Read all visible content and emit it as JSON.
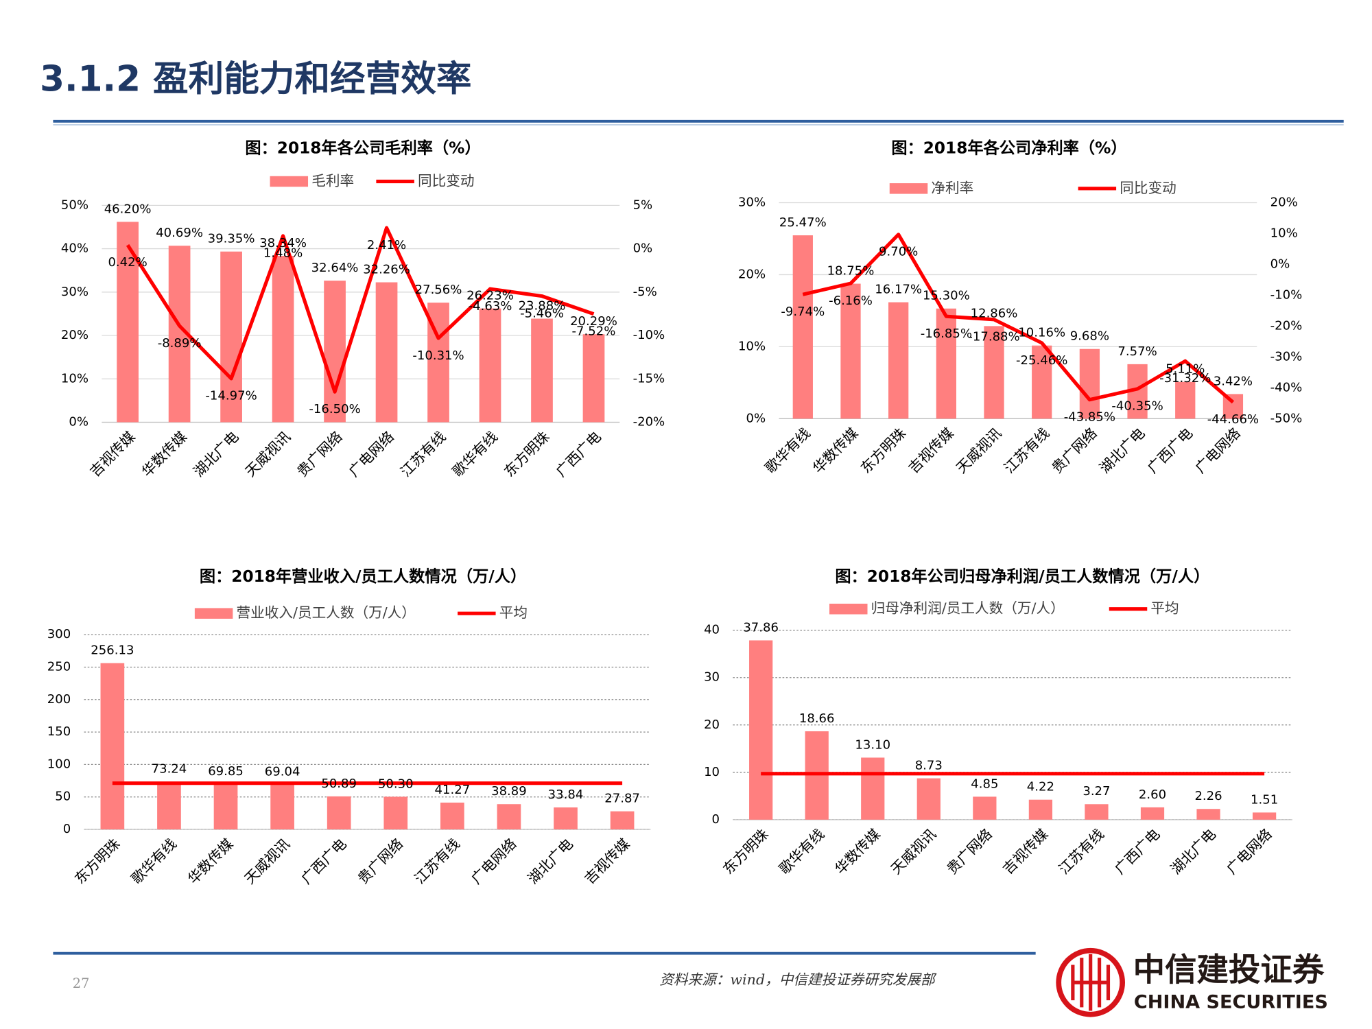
{
  "header": {
    "title": "3.1.2 盈利能力和经营效率"
  },
  "footer": {
    "page": "27",
    "source": "资料来源：wind，中信建投证券研究发展部",
    "logo_cn": "中信建投证券",
    "logo_en": "CHINA SECURITIES"
  },
  "chart_data": [
    {
      "type": "bar",
      "title": "图：2018年各公司毛利率（%）",
      "categories": [
        "吉视传媒",
        "华数传媒",
        "湖北广电",
        "天威视讯",
        "贵广网络",
        "广电网络",
        "江苏有线",
        "歌华有线",
        "东方明珠",
        "广西广电"
      ],
      "series": [
        {
          "name": "毛利率",
          "type": "bar",
          "color": "#ff7f7f",
          "values": [
            46.2,
            40.69,
            39.35,
            38.34,
            32.64,
            32.26,
            27.56,
            26.23,
            23.88,
            20.29
          ],
          "value_labels": [
            "46.20%",
            "40.69%",
            "39.35%",
            "38.34%",
            "32.64%",
            "32.26%",
            "27.56%",
            "26.23%",
            "23.88%",
            "20.29%"
          ]
        },
        {
          "name": "同比变动",
          "type": "line",
          "axis": "y2",
          "color": "#ff0000",
          "values": [
            0.42,
            -8.89,
            -14.97,
            1.48,
            -16.5,
            2.41,
            -10.31,
            -4.63,
            -5.46,
            -7.52
          ],
          "value_labels": [
            "0.42%",
            "-8.89%",
            "-14.97%",
            "1.48%",
            "-16.50%",
            "2.41%",
            "-10.31%",
            "-4.63%",
            "-5.46%",
            "-7.52%"
          ]
        }
      ],
      "ylim": [
        0,
        50
      ],
      "yticks": [
        {
          "value": 0,
          "label": "0%"
        },
        {
          "value": 10,
          "label": "10%"
        },
        {
          "value": 20,
          "label": "20%"
        },
        {
          "value": 30,
          "label": "30%"
        },
        {
          "value": 40,
          "label": "40%"
        },
        {
          "value": 50,
          "label": "50%"
        }
      ],
      "y2lim": [
        -20,
        5
      ],
      "y2ticks": [
        {
          "value": -20,
          "label": "-20%"
        },
        {
          "value": -15,
          "label": "-15%"
        },
        {
          "value": -10,
          "label": "-10%"
        },
        {
          "value": -5,
          "label": "-5%"
        },
        {
          "value": 0,
          "label": "0%"
        },
        {
          "value": 5,
          "label": "5%"
        }
      ],
      "grid": true,
      "grid_style": "solid",
      "legend": "top"
    },
    {
      "type": "bar",
      "title": "图：2018年各公司净利率（%）",
      "categories": [
        "歌华有线",
        "华数传媒",
        "东方明珠",
        "吉视传媒",
        "天威视讯",
        "江苏有线",
        "贵广网络",
        "湖北广电",
        "广西广电",
        "广电网络"
      ],
      "series": [
        {
          "name": "净利率",
          "type": "bar",
          "color": "#ff7f7f",
          "values": [
            25.47,
            18.75,
            16.17,
            15.3,
            12.86,
            10.16,
            9.68,
            7.57,
            5.11,
            3.42
          ],
          "value_labels": [
            "25.47%",
            "18.75%",
            "16.17%",
            "15.30%",
            "12.86%",
            "10.16%",
            "9.68%",
            "7.57%",
            "5.11%",
            "3.42%"
          ]
        },
        {
          "name": "同比变动",
          "type": "line",
          "axis": "y2",
          "color": "#ff0000",
          "values": [
            -9.74,
            -6.16,
            9.7,
            -16.85,
            -17.88,
            -25.46,
            -43.85,
            -40.35,
            -31.32,
            -44.66
          ],
          "value_labels": [
            "-9.74%",
            "-6.16%",
            "9.70%",
            "-16.85%",
            "-17.88%",
            "-25.46%",
            "-43.85%",
            "-40.35%",
            "-31.32%",
            "-44.66%"
          ]
        }
      ],
      "ylim": [
        0,
        30
      ],
      "yticks": [
        {
          "value": 0,
          "label": "0%"
        },
        {
          "value": 10,
          "label": "10%"
        },
        {
          "value": 20,
          "label": "20%"
        },
        {
          "value": 30,
          "label": "30%"
        }
      ],
      "y2lim": [
        -50,
        20
      ],
      "y2ticks": [
        {
          "value": -50,
          "label": "-50%"
        },
        {
          "value": -40,
          "label": "-40%"
        },
        {
          "value": -30,
          "label": "-30%"
        },
        {
          "value": -20,
          "label": "-20%"
        },
        {
          "value": -10,
          "label": "-10%"
        },
        {
          "value": 0,
          "label": "0%"
        },
        {
          "value": 10,
          "label": "10%"
        },
        {
          "value": 20,
          "label": "20%"
        }
      ],
      "grid": true,
      "grid_style": "solid",
      "legend": "top"
    },
    {
      "type": "bar",
      "title": "图：2018年营业收入/员工人数情况（万/人）",
      "categories": [
        "东方明珠",
        "歌华有线",
        "华数传媒",
        "天威视讯",
        "广西广电",
        "贵广网络",
        "江苏有线",
        "广电网络",
        "湖北广电",
        "吉视传媒"
      ],
      "series": [
        {
          "name": "营业收入/员工人数（万/人）",
          "type": "bar",
          "color": "#ff7f7f",
          "values": [
            256.13,
            73.24,
            69.85,
            69.04,
            50.89,
            50.3,
            41.27,
            38.89,
            33.84,
            27.87
          ],
          "value_labels": [
            "256.13",
            "73.24",
            "69.85",
            "69.04",
            "50.89",
            "50.30",
            "41.27",
            "38.89",
            "33.84",
            "27.87"
          ]
        },
        {
          "name": "平均",
          "type": "line",
          "color": "#ff0000",
          "values": [
            71.13,
            71.13,
            71.13,
            71.13,
            71.13,
            71.13,
            71.13,
            71.13,
            71.13,
            71.13
          ]
        }
      ],
      "ylim": [
        0,
        300
      ],
      "yticks": [
        0,
        50,
        100,
        150,
        200,
        250,
        300
      ],
      "grid": true,
      "grid_style": "dotted",
      "legend": "top"
    },
    {
      "type": "bar",
      "title": "图：2018年公司归母净利润/员工人数情况（万/人）",
      "categories": [
        "东方明珠",
        "歌华有线",
        "华数传媒",
        "天威视讯",
        "贵广网络",
        "吉视传媒",
        "江苏有线",
        "广西广电",
        "湖北广电",
        "广电网络"
      ],
      "series": [
        {
          "name": "归母净利润/员工人数（万/人）",
          "type": "bar",
          "color": "#ff7f7f",
          "values": [
            37.86,
            18.66,
            13.1,
            8.73,
            4.85,
            4.22,
            3.27,
            2.6,
            2.26,
            1.51
          ],
          "value_labels": [
            "37.86",
            "18.66",
            "13.10",
            "8.73",
            "4.85",
            "4.22",
            "3.27",
            "2.60",
            "2.26",
            "1.51"
          ]
        },
        {
          "name": "平均",
          "type": "line",
          "color": "#ff0000",
          "values": [
            9.71,
            9.71,
            9.71,
            9.71,
            9.71,
            9.71,
            9.71,
            9.71,
            9.71,
            9.71
          ]
        }
      ],
      "ylim": [
        0,
        40
      ],
      "yticks": [
        0,
        10,
        20,
        30,
        40
      ],
      "grid": true,
      "grid_style": "dotted",
      "legend": "top"
    }
  ]
}
